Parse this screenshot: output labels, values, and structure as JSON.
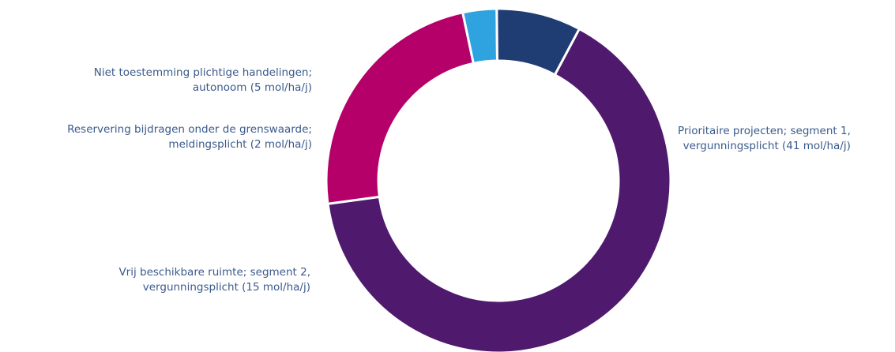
{
  "chart_data": {
    "type": "pie",
    "donut": true,
    "title": "",
    "unit": "mol/ha/j",
    "slices": [
      {
        "label_line1": "Prioritaire projecten; segment 1,",
        "label_line2": "vergunningsplicht (41 mol/ha/j)",
        "value": 41,
        "color": "#4f1a6e"
      },
      {
        "label_line1": "Vrij beschikbare ruimte; segment 2,",
        "label_line2": "vergunningsplicht (15 mol/ha/j)",
        "value": 15,
        "color": "#b5006a"
      },
      {
        "label_line1": "Reservering bijdragen onder de grenswaarde;",
        "label_line2": "meldingsplicht (2 mol/ha/j)",
        "value": 2,
        "color": "#2fa3e0"
      },
      {
        "label_line1": "Niet toestemming plichtige handelingen;",
        "label_line2": "autonoom (5 mol/ha/j)",
        "value": 5,
        "color": "#1f3d73"
      }
    ]
  }
}
